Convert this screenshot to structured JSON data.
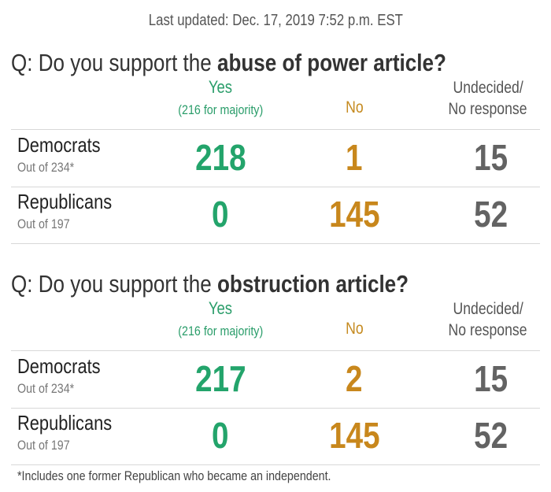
{
  "last_updated": "Last updated: Dec. 17, 2019 7:52 p.m. EST",
  "footnote": "*Includes one former Republican who became an independent.",
  "colors": {
    "yes": "#23a46b",
    "no": "#c8871c",
    "undecided": "#636363"
  },
  "chart_data": {
    "type": "table",
    "columns": {
      "yes": "Yes",
      "yes_note": "(216 for majority)",
      "no": "No",
      "undecided_1": "Undecided/",
      "undecided_2": "No response"
    },
    "sections": [
      {
        "question_prefix": "Q: Do you support the ",
        "question_bold": "abuse of power article?",
        "rows": [
          {
            "party": "Democrats",
            "out_of": "Out of 234*",
            "yes": "218",
            "no": "1",
            "undecided": "15"
          },
          {
            "party": "Republicans",
            "out_of": "Out of 197",
            "yes": "0",
            "no": "145",
            "undecided": "52"
          }
        ]
      },
      {
        "question_prefix": "Q: Do you support the ",
        "question_bold": "obstruction article?",
        "rows": [
          {
            "party": "Democrats",
            "out_of": "Out of 234*",
            "yes": "217",
            "no": "2",
            "undecided": "15"
          },
          {
            "party": "Republicans",
            "out_of": "Out of 197",
            "yes": "0",
            "no": "145",
            "undecided": "52"
          }
        ]
      }
    ]
  }
}
